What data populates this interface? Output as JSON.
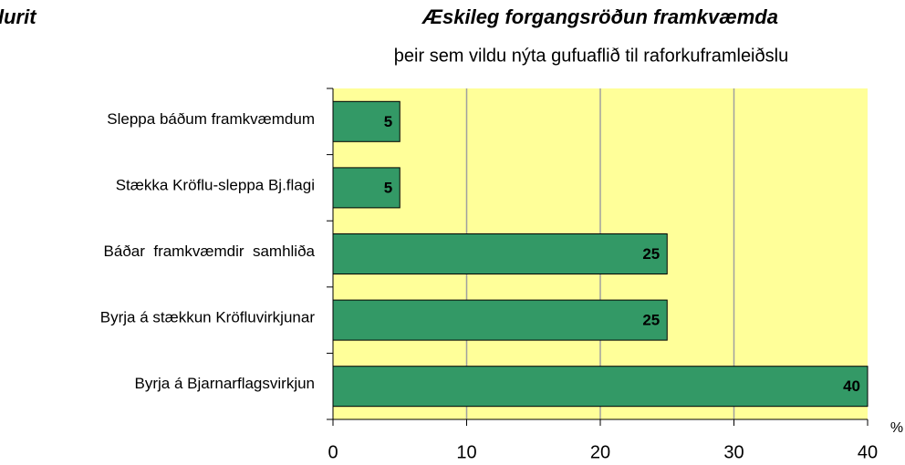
{
  "chart_data": {
    "type": "bar",
    "orientation": "horizontal",
    "corner_text": "lurit",
    "title": "Æskileg forgangsröðun framkvæmda",
    "subtitle": "þeir sem vildu nýta gufuaflið til raforkuframleiðslu",
    "x_label": "%",
    "categories": [
      "Sleppa báðum framkvæmdum",
      "Stækka Kröflu-sleppa Bj.flagi",
      "Báðar  framkvæmdir  samhliða",
      "Byrja á stækkun Kröfluvirkjunar",
      "Byrja á Bjarnarflagsvirkjun"
    ],
    "values": [
      5,
      5,
      25,
      25,
      40
    ],
    "color": "#339966",
    "plot_background": "#ffff99",
    "xlim": [
      0,
      40
    ],
    "xticks": [
      0,
      10,
      20,
      30,
      40
    ],
    "grid": true
  }
}
